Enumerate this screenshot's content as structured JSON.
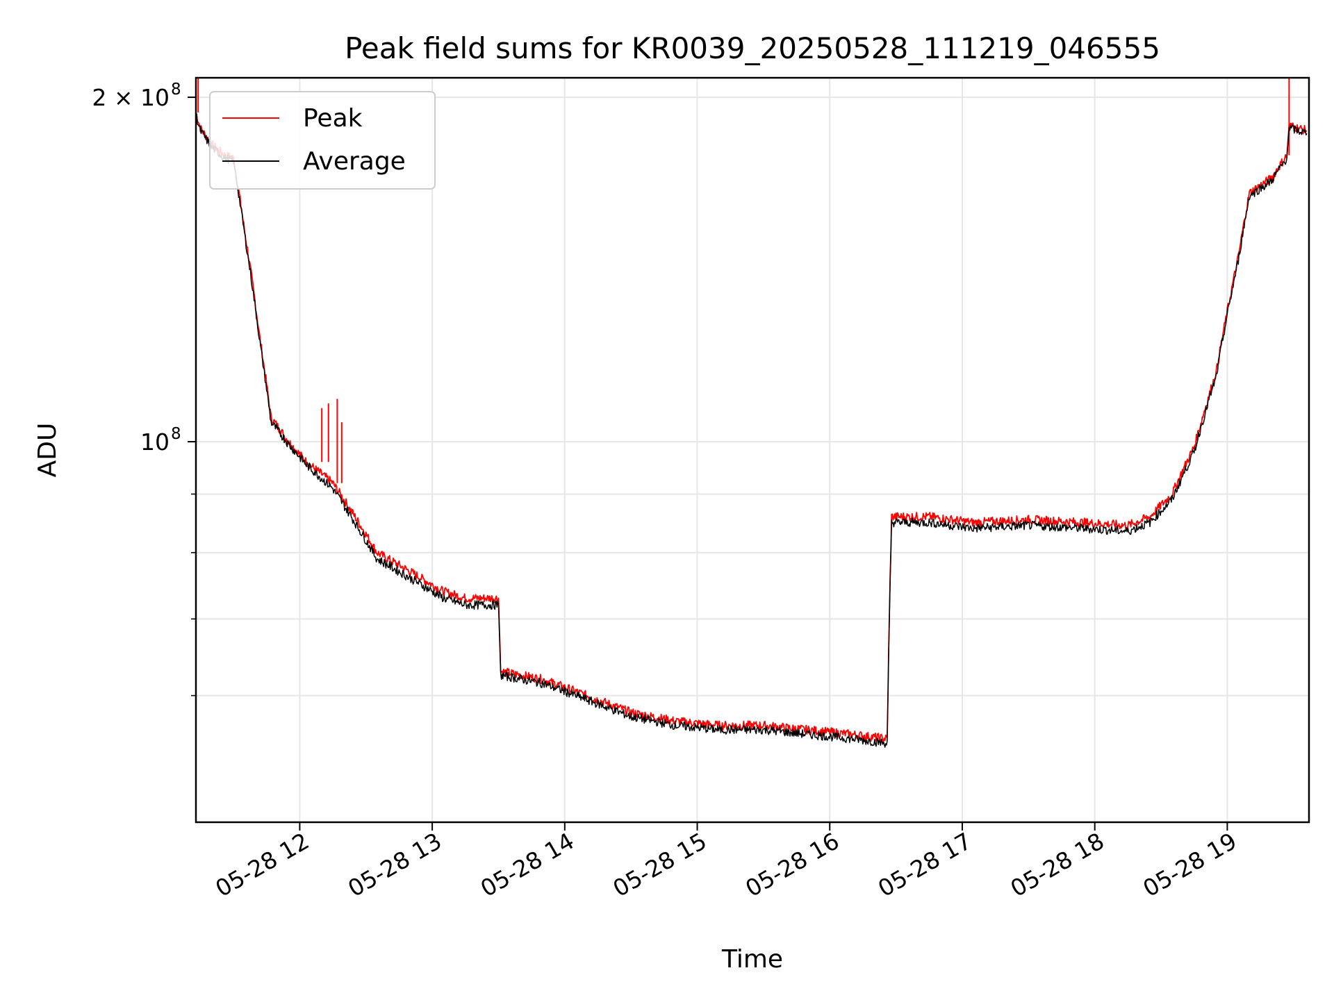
{
  "chart_data": {
    "type": "line",
    "title": "Peak field sums for KR0039_20250528_111219_046555",
    "xlabel": "Time",
    "ylabel": "ADU",
    "yscale": "log",
    "xlim": [
      "05-28 11:13",
      "05-28 19:37"
    ],
    "ylim": [
      46500000,
      208000000
    ],
    "grid": true,
    "legend_position": "top-left",
    "x_ticks": [
      "05-28 12",
      "05-28 13",
      "05-28 14",
      "05-28 15",
      "05-28 16",
      "05-28 17",
      "05-28 18",
      "05-28 19"
    ],
    "y_tick_labels": [
      {
        "value": 200000000,
        "base": "2 × 10",
        "exp": "8"
      },
      {
        "value": 100000000,
        "base": "10",
        "exp": "8"
      }
    ],
    "y_minor_ticks": [
      60000000,
      70000000,
      80000000,
      90000000
    ],
    "series": [
      {
        "name": "Peak",
        "color": "#ff0000",
        "x": [
          "05-28 11:13",
          "05-28 11:15",
          "05-28 11:20",
          "05-28 11:26",
          "05-28 11:30",
          "05-28 11:35",
          "05-28 11:42",
          "05-28 11:47",
          "05-28 11:55",
          "05-28 12:03",
          "05-28 12:15",
          "05-28 12:25",
          "05-28 12:35",
          "05-28 12:45",
          "05-28 12:55",
          "05-28 13:05",
          "05-28 13:15",
          "05-28 13:25",
          "05-28 13:30",
          "05-28 13:31",
          "05-28 13:50",
          "05-28 14:10",
          "05-28 14:30",
          "05-28 14:50",
          "05-28 15:10",
          "05-28 15:30",
          "05-28 15:50",
          "05-28 16:10",
          "05-28 16:26",
          "05-28 16:28",
          "05-28 16:45",
          "05-28 17:05",
          "05-28 17:30",
          "05-28 17:55",
          "05-28 18:15",
          "05-28 18:25",
          "05-28 18:35",
          "05-28 18:45",
          "05-28 18:55",
          "05-28 19:05",
          "05-28 19:10",
          "05-28 19:20",
          "05-28 19:27",
          "05-28 19:28",
          "05-28 19:32",
          "05-28 19:36"
        ],
        "y": [
          194000000,
          188000000,
          182000000,
          178000000,
          177000000,
          153000000,
          123000000,
          105000000,
          100000000,
          96000000,
          92000000,
          86000000,
          80000000,
          78000000,
          76000000,
          74000000,
          73000000,
          73000000,
          73000000,
          63000000,
          62000000,
          60000000,
          58000000,
          57000000,
          56500000,
          56500000,
          56000000,
          55500000,
          55000000,
          86000000,
          86000000,
          85000000,
          85500000,
          85000000,
          84500000,
          86000000,
          90000000,
          99000000,
          115000000,
          145000000,
          165000000,
          170000000,
          178000000,
          189000000,
          188000000,
          187000000
        ],
        "spikes": [
          {
            "x": "05-28 11:14",
            "y": 210000000
          },
          {
            "x": "05-28 12:10",
            "y": 107000000
          },
          {
            "x": "05-28 12:13",
            "y": 108000000
          },
          {
            "x": "05-28 12:17",
            "y": 109000000
          },
          {
            "x": "05-28 12:19",
            "y": 104000000
          },
          {
            "x": "05-28 19:28",
            "y": 215000000
          }
        ]
      },
      {
        "name": "Average",
        "color": "#000000",
        "x": [
          "05-28 11:13",
          "05-28 11:15",
          "05-28 11:20",
          "05-28 11:26",
          "05-28 11:30",
          "05-28 11:35",
          "05-28 11:42",
          "05-28 11:47",
          "05-28 11:55",
          "05-28 12:03",
          "05-28 12:15",
          "05-28 12:25",
          "05-28 12:35",
          "05-28 12:45",
          "05-28 12:55",
          "05-28 13:05",
          "05-28 13:15",
          "05-28 13:25",
          "05-28 13:30",
          "05-28 13:31",
          "05-28 13:50",
          "05-28 14:10",
          "05-28 14:30",
          "05-28 14:50",
          "05-28 15:10",
          "05-28 15:30",
          "05-28 15:50",
          "05-28 16:10",
          "05-28 16:26",
          "05-28 16:28",
          "05-28 16:45",
          "05-28 17:05",
          "05-28 17:30",
          "05-28 17:55",
          "05-28 18:15",
          "05-28 18:25",
          "05-28 18:35",
          "05-28 18:45",
          "05-28 18:55",
          "05-28 19:05",
          "05-28 19:10",
          "05-28 19:20",
          "05-28 19:27",
          "05-28 19:28",
          "05-28 19:32",
          "05-28 19:36"
        ],
        "y": [
          193000000,
          187000000,
          181000000,
          177000000,
          176000000,
          152000000,
          122000000,
          104000000,
          99500000,
          95500000,
          91000000,
          85000000,
          79000000,
          77000000,
          75000000,
          73000000,
          72000000,
          72000000,
          72000000,
          62500000,
          61500000,
          59500000,
          57500000,
          56500000,
          56000000,
          56000000,
          55500000,
          55000000,
          54500000,
          85000000,
          85000000,
          84000000,
          84500000,
          84000000,
          83500000,
          85000000,
          89000000,
          98000000,
          114000000,
          144000000,
          164000000,
          169000000,
          177000000,
          188000000,
          187000000,
          186000000
        ]
      }
    ]
  }
}
